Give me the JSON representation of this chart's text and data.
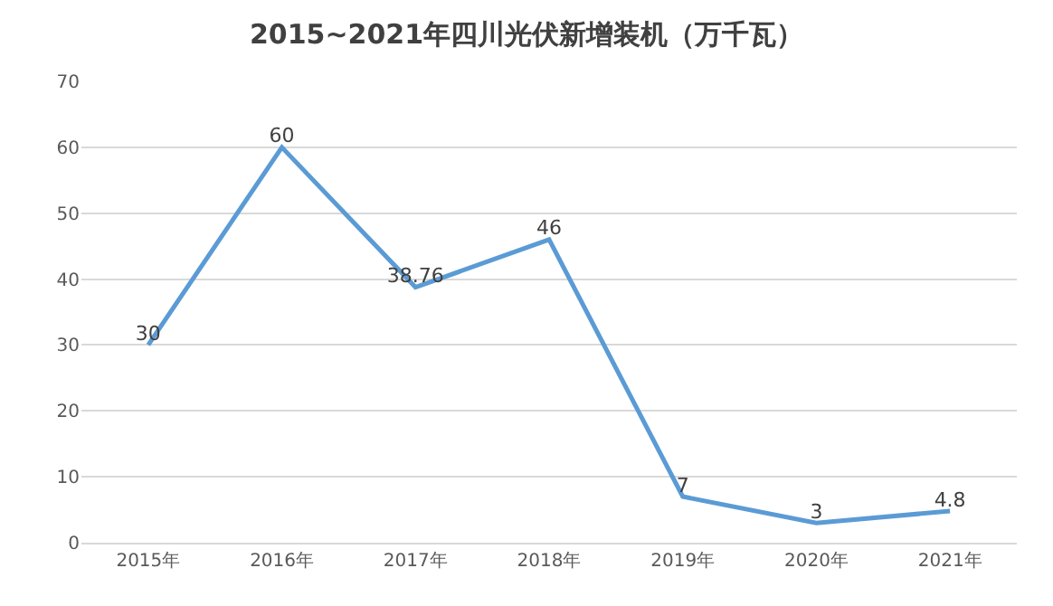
{
  "chart_data": {
    "type": "line",
    "title": "2015~2021年四川光伏新增装机（万千瓦）",
    "categories": [
      "2015年",
      "2016年",
      "2017年",
      "2018年",
      "2019年",
      "2020年",
      "2021年"
    ],
    "series": [
      {
        "color": "#5b9bd5",
        "values": [
          30,
          60,
          38.76,
          46,
          7,
          3,
          4.8
        ]
      }
    ],
    "ylim": [
      0,
      70
    ],
    "yticks": [
      0,
      10,
      20,
      30,
      40,
      50,
      60,
      70
    ],
    "grid": "y",
    "legend": false,
    "marker": "none",
    "line_style": "solid",
    "data_labels": true
  }
}
